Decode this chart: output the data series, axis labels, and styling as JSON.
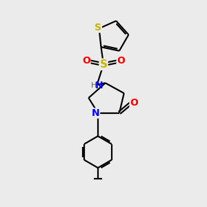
{
  "background_color": "#ebebeb",
  "bond_color": "#000000",
  "S_color": "#c8b400",
  "N_color": "#0000ff",
  "O_color": "#ff0000",
  "figsize": [
    3.0,
    3.0
  ],
  "dpi": 100,
  "xlim": [
    -3.5,
    3.5
  ],
  "ylim": [
    -5.5,
    5.5
  ]
}
